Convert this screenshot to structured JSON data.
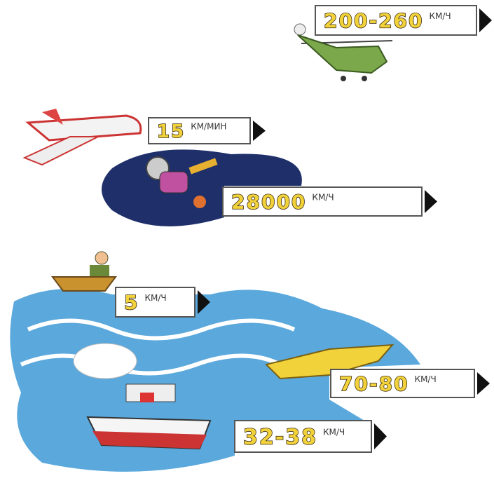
{
  "labels": [
    {
      "speed": "200-260",
      "unit": "КМ/Ч"
    },
    {
      "speed": "15",
      "unit": "КМ/МИН"
    },
    {
      "speed": "28000",
      "unit": "КМ/Ч"
    },
    {
      "speed": "5",
      "unit": "КМ/Ч"
    },
    {
      "speed": "70-80",
      "unit": "КМ/Ч"
    },
    {
      "speed": "32-38",
      "unit": "КМ/Ч"
    }
  ]
}
